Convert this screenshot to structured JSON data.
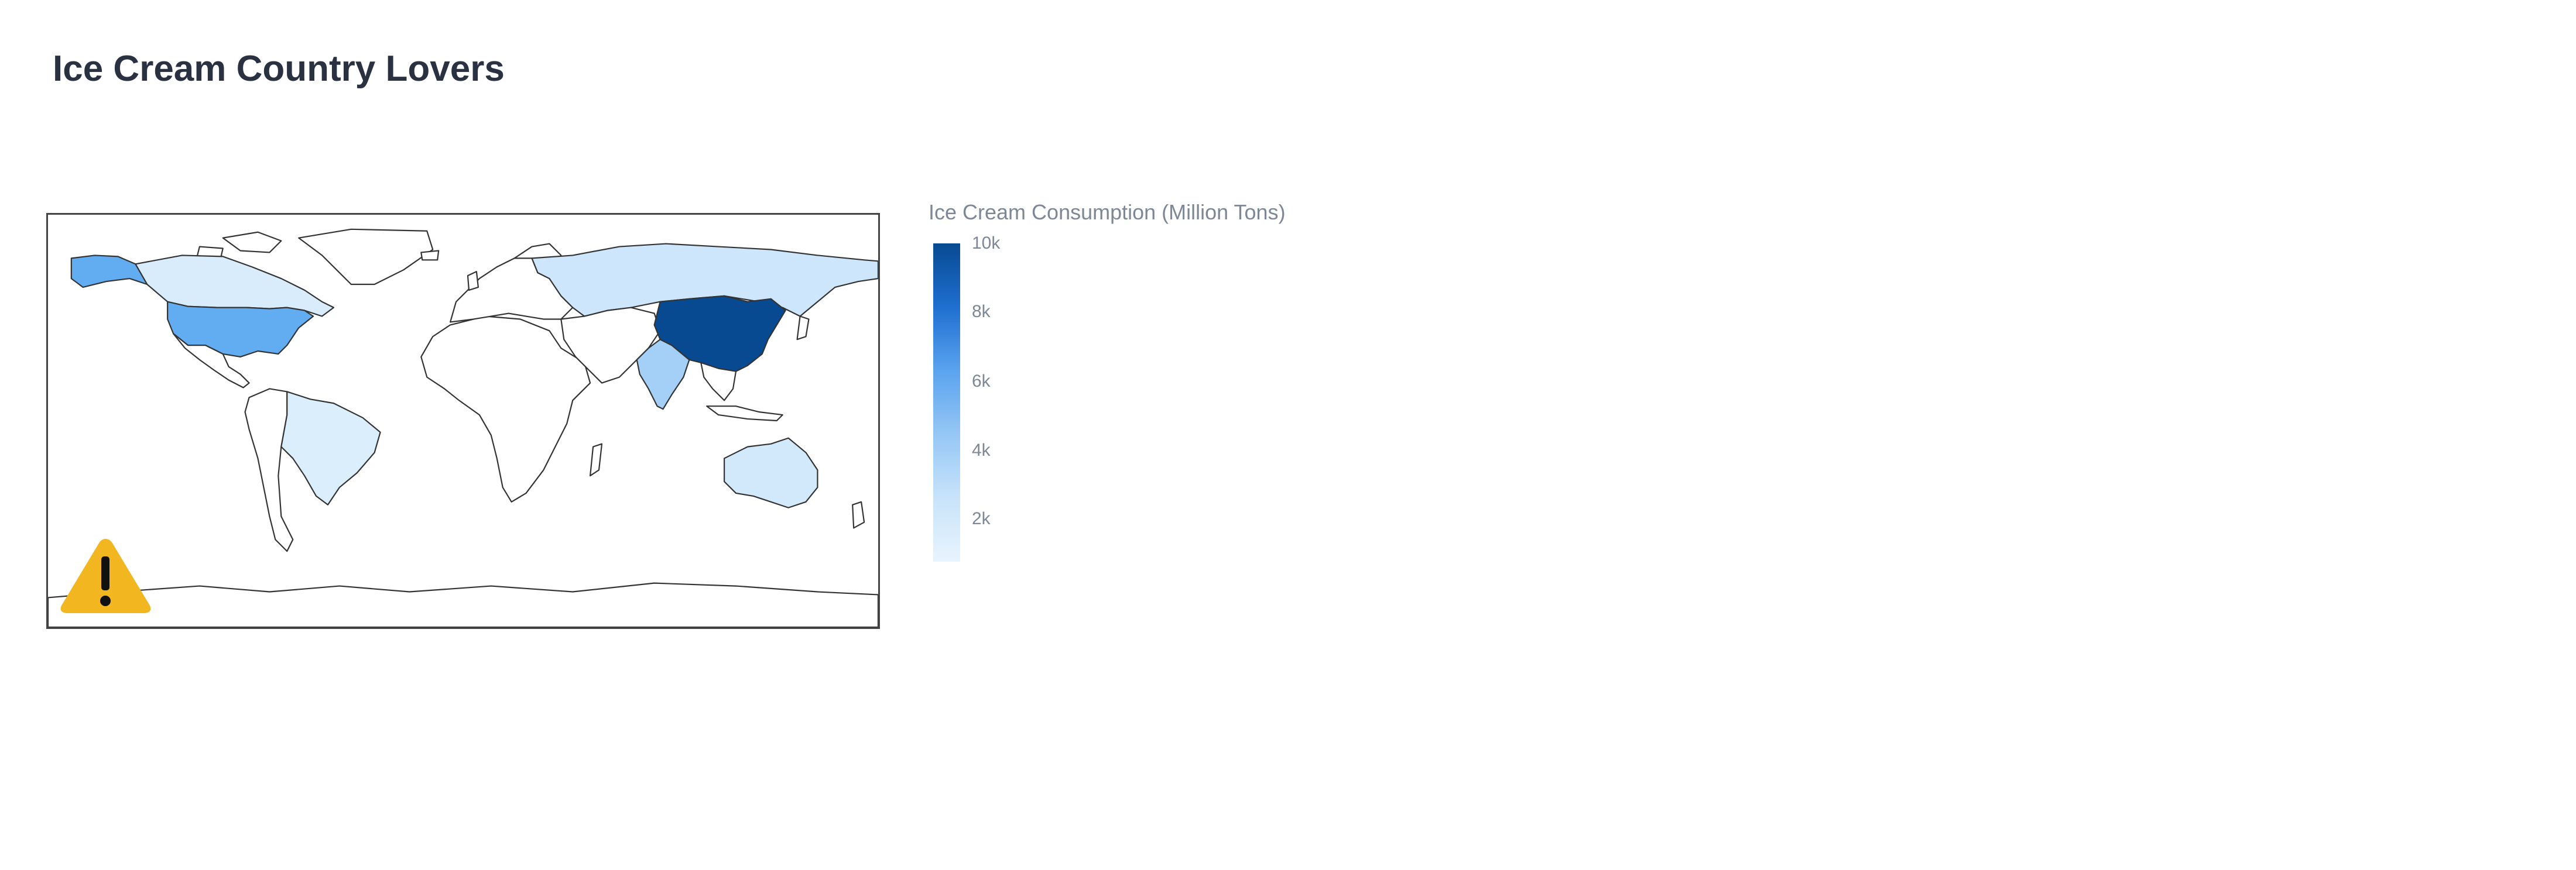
{
  "title": "Ice Cream Country Lovers",
  "colorbar": {
    "title": "Ice Cream Consumption (Million Tons)",
    "ticks": [
      "10k",
      "8k",
      "6k",
      "4k",
      "2k"
    ],
    "tick_values": [
      10000,
      8000,
      6000,
      4000,
      2000
    ],
    "range": [
      500,
      10000
    ],
    "colorscale": [
      "#e8f4fd",
      "#c8e3fa",
      "#95c7f5",
      "#5aa3ee",
      "#1e6fd0",
      "#084a92"
    ]
  },
  "map_data": {
    "type": "choropleth",
    "projection": "equirectangular",
    "countries": [
      {
        "country": "China",
        "value": 10000,
        "color": "#084a92"
      },
      {
        "country": "United States",
        "value": 5300,
        "color": "#62acf1"
      },
      {
        "country": "India",
        "value": 3500,
        "color": "#a4cff6"
      },
      {
        "country": "Russia",
        "value": 1500,
        "color": "#cde6fb"
      },
      {
        "country": "Canada",
        "value": 1000,
        "color": "#d8ecfc"
      },
      {
        "country": "Brazil",
        "value": 900,
        "color": "#dbeefc"
      },
      {
        "country": "Australia",
        "value": 1200,
        "color": "#d2e9fb"
      }
    ]
  },
  "icons": {
    "warning": "warning-triangle-icon",
    "warning_color": "#f2b620"
  }
}
